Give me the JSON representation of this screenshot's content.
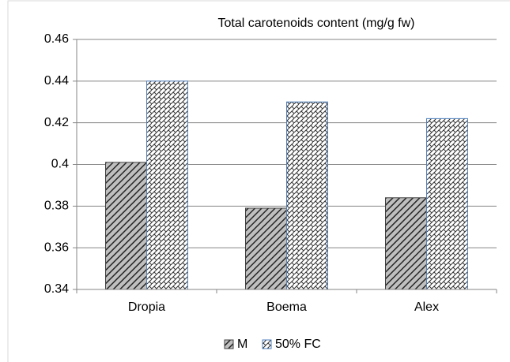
{
  "chart_data": {
    "type": "bar",
    "title": "Total carotenoids content (mg/g fw)",
    "categories": [
      "Dropia",
      "Boema",
      "Alex"
    ],
    "series": [
      {
        "name": "M",
        "color": "#404040",
        "values": [
          0.401,
          0.379,
          0.384
        ]
      },
      {
        "name": "50% FC",
        "color": "#4f81bd",
        "values": [
          0.44,
          0.43,
          0.422
        ]
      }
    ],
    "ylim": [
      0.34,
      0.46
    ],
    "yticks": [
      0.34,
      0.36,
      0.38,
      0.4,
      0.42,
      0.44,
      0.46
    ],
    "grid": true,
    "legend": "bottom"
  }
}
